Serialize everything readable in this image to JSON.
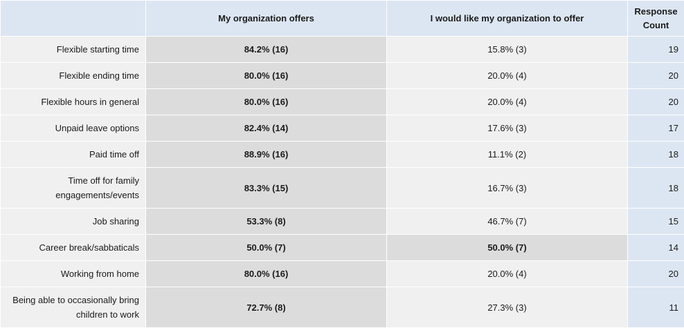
{
  "chart_data": {
    "type": "table",
    "columns": [
      "",
      "My organization offers",
      "I would like my organization to offer",
      "Response Count"
    ],
    "header": {
      "col1": "My organization offers",
      "col2": "I would like my organization to offer",
      "col3_line1": "Response",
      "col3_line2": "Count"
    },
    "rows": [
      {
        "label": "Flexible starting time",
        "offers": "84.2% (16)",
        "like": "15.8% (3)",
        "count": "19",
        "hl": "offers",
        "tall": false
      },
      {
        "label": "Flexible ending time",
        "offers": "80.0% (16)",
        "like": "20.0% (4)",
        "count": "20",
        "hl": "offers",
        "tall": false
      },
      {
        "label": "Flexible hours in general",
        "offers": "80.0% (16)",
        "like": "20.0% (4)",
        "count": "20",
        "hl": "offers",
        "tall": false
      },
      {
        "label": "Unpaid leave options",
        "offers": "82.4% (14)",
        "like": "17.6% (3)",
        "count": "17",
        "hl": "offers",
        "tall": false
      },
      {
        "label": "Paid time off",
        "offers": "88.9% (16)",
        "like": "11.1% (2)",
        "count": "18",
        "hl": "offers",
        "tall": false
      },
      {
        "label": "Time off for family engagements/events",
        "offers": "83.3% (15)",
        "like": "16.7% (3)",
        "count": "18",
        "hl": "offers",
        "tall": true
      },
      {
        "label": "Job sharing",
        "offers": "53.3% (8)",
        "like": "46.7% (7)",
        "count": "15",
        "hl": "offers",
        "tall": false
      },
      {
        "label": "Career break/sabbaticals",
        "offers": "50.0% (7)",
        "like": "50.0% (7)",
        "count": "14",
        "hl": "both",
        "tall": false
      },
      {
        "label": "Working from home",
        "offers": "80.0% (16)",
        "like": "20.0% (4)",
        "count": "20",
        "hl": "offers",
        "tall": false
      },
      {
        "label": "Being able to occasionally bring children to work",
        "offers": "72.7% (8)",
        "like": "27.3% (3)",
        "count": "11",
        "hl": "offers",
        "tall": true
      }
    ]
  }
}
